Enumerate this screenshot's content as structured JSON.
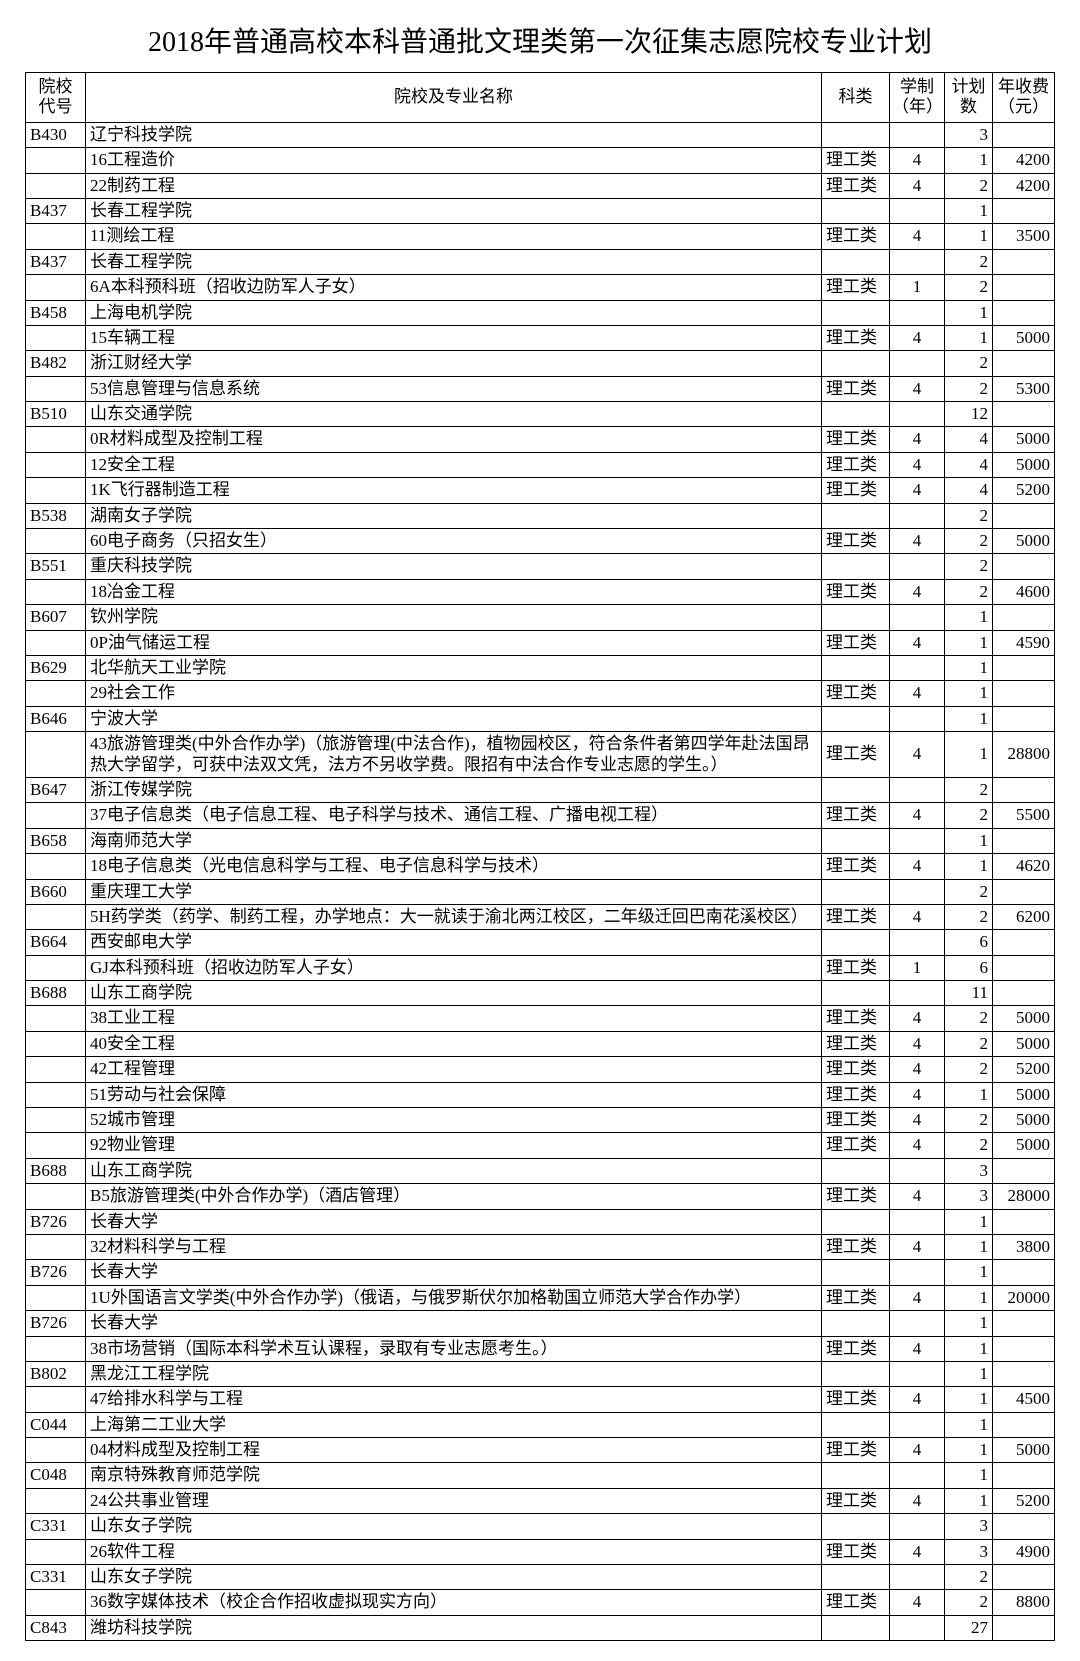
{
  "title": "2018年普通高校本科普通批文理类第一次征集志愿院校专业计划",
  "headers": {
    "code": "院校\n代号",
    "name": "院校及专业名称",
    "category": "科类",
    "duration": "学制\n（年）",
    "plan": "计划\n数",
    "fee": "年收费\n（元）"
  },
  "rows": [
    {
      "type": "school",
      "code": "B430",
      "name": "辽宁科技学院",
      "plan": "3"
    },
    {
      "type": "major",
      "name": "16工程造价",
      "cat": "理工类",
      "dur": "4",
      "plan": "1",
      "fee": "4200"
    },
    {
      "type": "major",
      "name": "22制药工程",
      "cat": "理工类",
      "dur": "4",
      "plan": "2",
      "fee": "4200"
    },
    {
      "type": "school",
      "code": "B437",
      "name": "长春工程学院",
      "plan": "1"
    },
    {
      "type": "major",
      "name": "11测绘工程",
      "cat": "理工类",
      "dur": "4",
      "plan": "1",
      "fee": "3500"
    },
    {
      "type": "school",
      "code": "B437",
      "name": "长春工程学院",
      "plan": "2"
    },
    {
      "type": "major",
      "name": "6A本科预科班（招收边防军人子女）",
      "cat": "理工类",
      "dur": "1",
      "plan": "2",
      "fee": ""
    },
    {
      "type": "school",
      "code": "B458",
      "name": "上海电机学院",
      "plan": "1"
    },
    {
      "type": "major",
      "name": "15车辆工程",
      "cat": "理工类",
      "dur": "4",
      "plan": "1",
      "fee": "5000"
    },
    {
      "type": "school",
      "code": "B482",
      "name": "浙江财经大学",
      "plan": "2"
    },
    {
      "type": "major",
      "name": "53信息管理与信息系统",
      "cat": "理工类",
      "dur": "4",
      "plan": "2",
      "fee": "5300"
    },
    {
      "type": "school",
      "code": "B510",
      "name": "山东交通学院",
      "plan": "12"
    },
    {
      "type": "major",
      "name": "0R材料成型及控制工程",
      "cat": "理工类",
      "dur": "4",
      "plan": "4",
      "fee": "5000"
    },
    {
      "type": "major",
      "name": "12安全工程",
      "cat": "理工类",
      "dur": "4",
      "plan": "4",
      "fee": "5000"
    },
    {
      "type": "major",
      "name": "1K飞行器制造工程",
      "cat": "理工类",
      "dur": "4",
      "plan": "4",
      "fee": "5200"
    },
    {
      "type": "school",
      "code": "B538",
      "name": "湖南女子学院",
      "plan": "2"
    },
    {
      "type": "major",
      "name": "60电子商务（只招女生）",
      "cat": "理工类",
      "dur": "4",
      "plan": "2",
      "fee": "5000"
    },
    {
      "type": "school",
      "code": "B551",
      "name": "重庆科技学院",
      "plan": "2"
    },
    {
      "type": "major",
      "name": "18冶金工程",
      "cat": "理工类",
      "dur": "4",
      "plan": "2",
      "fee": "4600"
    },
    {
      "type": "school",
      "code": "B607",
      "name": "钦州学院",
      "plan": "1"
    },
    {
      "type": "major",
      "name": "0P油气储运工程",
      "cat": "理工类",
      "dur": "4",
      "plan": "1",
      "fee": "4590"
    },
    {
      "type": "school",
      "code": "B629",
      "name": "北华航天工业学院",
      "plan": "1"
    },
    {
      "type": "major",
      "name": "29社会工作",
      "cat": "理工类",
      "dur": "4",
      "plan": "1",
      "fee": ""
    },
    {
      "type": "school",
      "code": "B646",
      "name": "宁波大学",
      "plan": "1"
    },
    {
      "type": "major",
      "name": "43旅游管理类(中外合作办学)（旅游管理(中法合作)，植物园校区，符合条件者第四学年赴法国昂热大学留学，可获中法双文凭，法方不另收学费。限招有中法合作专业志愿的学生。）",
      "cat": "理工类",
      "dur": "4",
      "plan": "1",
      "fee": "28800"
    },
    {
      "type": "school",
      "code": "B647",
      "name": "浙江传媒学院",
      "plan": "2"
    },
    {
      "type": "major",
      "name": "37电子信息类（电子信息工程、电子科学与技术、通信工程、广播电视工程）",
      "cat": "理工类",
      "dur": "4",
      "plan": "2",
      "fee": "5500"
    },
    {
      "type": "school",
      "code": "B658",
      "name": "海南师范大学",
      "plan": "1"
    },
    {
      "type": "major",
      "name": "18电子信息类（光电信息科学与工程、电子信息科学与技术）",
      "cat": "理工类",
      "dur": "4",
      "plan": "1",
      "fee": "4620"
    },
    {
      "type": "school",
      "code": "B660",
      "name": "重庆理工大学",
      "plan": "2"
    },
    {
      "type": "major",
      "name": "5H药学类（药学、制药工程，办学地点：大一就读于渝北两江校区，二年级迁回巴南花溪校区）",
      "cat": "理工类",
      "dur": "4",
      "plan": "2",
      "fee": "6200"
    },
    {
      "type": "school",
      "code": "B664",
      "name": "西安邮电大学",
      "plan": "6"
    },
    {
      "type": "major",
      "name": "GJ本科预科班（招收边防军人子女）",
      "cat": "理工类",
      "dur": "1",
      "plan": "6",
      "fee": ""
    },
    {
      "type": "school",
      "code": "B688",
      "name": "山东工商学院",
      "plan": "11"
    },
    {
      "type": "major",
      "name": "38工业工程",
      "cat": "理工类",
      "dur": "4",
      "plan": "2",
      "fee": "5000"
    },
    {
      "type": "major",
      "name": "40安全工程",
      "cat": "理工类",
      "dur": "4",
      "plan": "2",
      "fee": "5000"
    },
    {
      "type": "major",
      "name": "42工程管理",
      "cat": "理工类",
      "dur": "4",
      "plan": "2",
      "fee": "5200"
    },
    {
      "type": "major",
      "name": "51劳动与社会保障",
      "cat": "理工类",
      "dur": "4",
      "plan": "1",
      "fee": "5000"
    },
    {
      "type": "major",
      "name": "52城市管理",
      "cat": "理工类",
      "dur": "4",
      "plan": "2",
      "fee": "5000"
    },
    {
      "type": "major",
      "name": "92物业管理",
      "cat": "理工类",
      "dur": "4",
      "plan": "2",
      "fee": "5000"
    },
    {
      "type": "school",
      "code": "B688",
      "name": "山东工商学院",
      "plan": "3"
    },
    {
      "type": "major",
      "name": "B5旅游管理类(中外合作办学)（酒店管理）",
      "cat": "理工类",
      "dur": "4",
      "plan": "3",
      "fee": "28000"
    },
    {
      "type": "school",
      "code": "B726",
      "name": "长春大学",
      "plan": "1"
    },
    {
      "type": "major",
      "name": "32材料科学与工程",
      "cat": "理工类",
      "dur": "4",
      "plan": "1",
      "fee": "3800"
    },
    {
      "type": "school",
      "code": "B726",
      "name": "长春大学",
      "plan": "1"
    },
    {
      "type": "major",
      "name": "1U外国语言文学类(中外合作办学)（俄语，与俄罗斯伏尔加格勒国立师范大学合作办学）",
      "cat": "理工类",
      "dur": "4",
      "plan": "1",
      "fee": "20000"
    },
    {
      "type": "school",
      "code": "B726",
      "name": "长春大学",
      "plan": "1"
    },
    {
      "type": "major",
      "name": "38市场营销（国际本科学术互认课程，录取有专业志愿考生。）",
      "cat": "理工类",
      "dur": "4",
      "plan": "1",
      "fee": ""
    },
    {
      "type": "school",
      "code": "B802",
      "name": "黑龙江工程学院",
      "plan": "1"
    },
    {
      "type": "major",
      "name": "47给排水科学与工程",
      "cat": "理工类",
      "dur": "4",
      "plan": "1",
      "fee": "4500"
    },
    {
      "type": "school",
      "code": "C044",
      "name": "上海第二工业大学",
      "plan": "1"
    },
    {
      "type": "major",
      "name": "04材料成型及控制工程",
      "cat": "理工类",
      "dur": "4",
      "plan": "1",
      "fee": "5000"
    },
    {
      "type": "school",
      "code": "C048",
      "name": "南京特殊教育师范学院",
      "plan": "1"
    },
    {
      "type": "major",
      "name": "24公共事业管理",
      "cat": "理工类",
      "dur": "4",
      "plan": "1",
      "fee": "5200"
    },
    {
      "type": "school",
      "code": "C331",
      "name": "山东女子学院",
      "plan": "3"
    },
    {
      "type": "major",
      "name": "26软件工程",
      "cat": "理工类",
      "dur": "4",
      "plan": "3",
      "fee": "4900"
    },
    {
      "type": "school",
      "code": "C331",
      "name": "山东女子学院",
      "plan": "2"
    },
    {
      "type": "major",
      "name": "36数字媒体技术（校企合作招收虚拟现实方向）",
      "cat": "理工类",
      "dur": "4",
      "plan": "2",
      "fee": "8800"
    },
    {
      "type": "school",
      "code": "C843",
      "name": "潍坊科技学院",
      "plan": "27"
    }
  ]
}
